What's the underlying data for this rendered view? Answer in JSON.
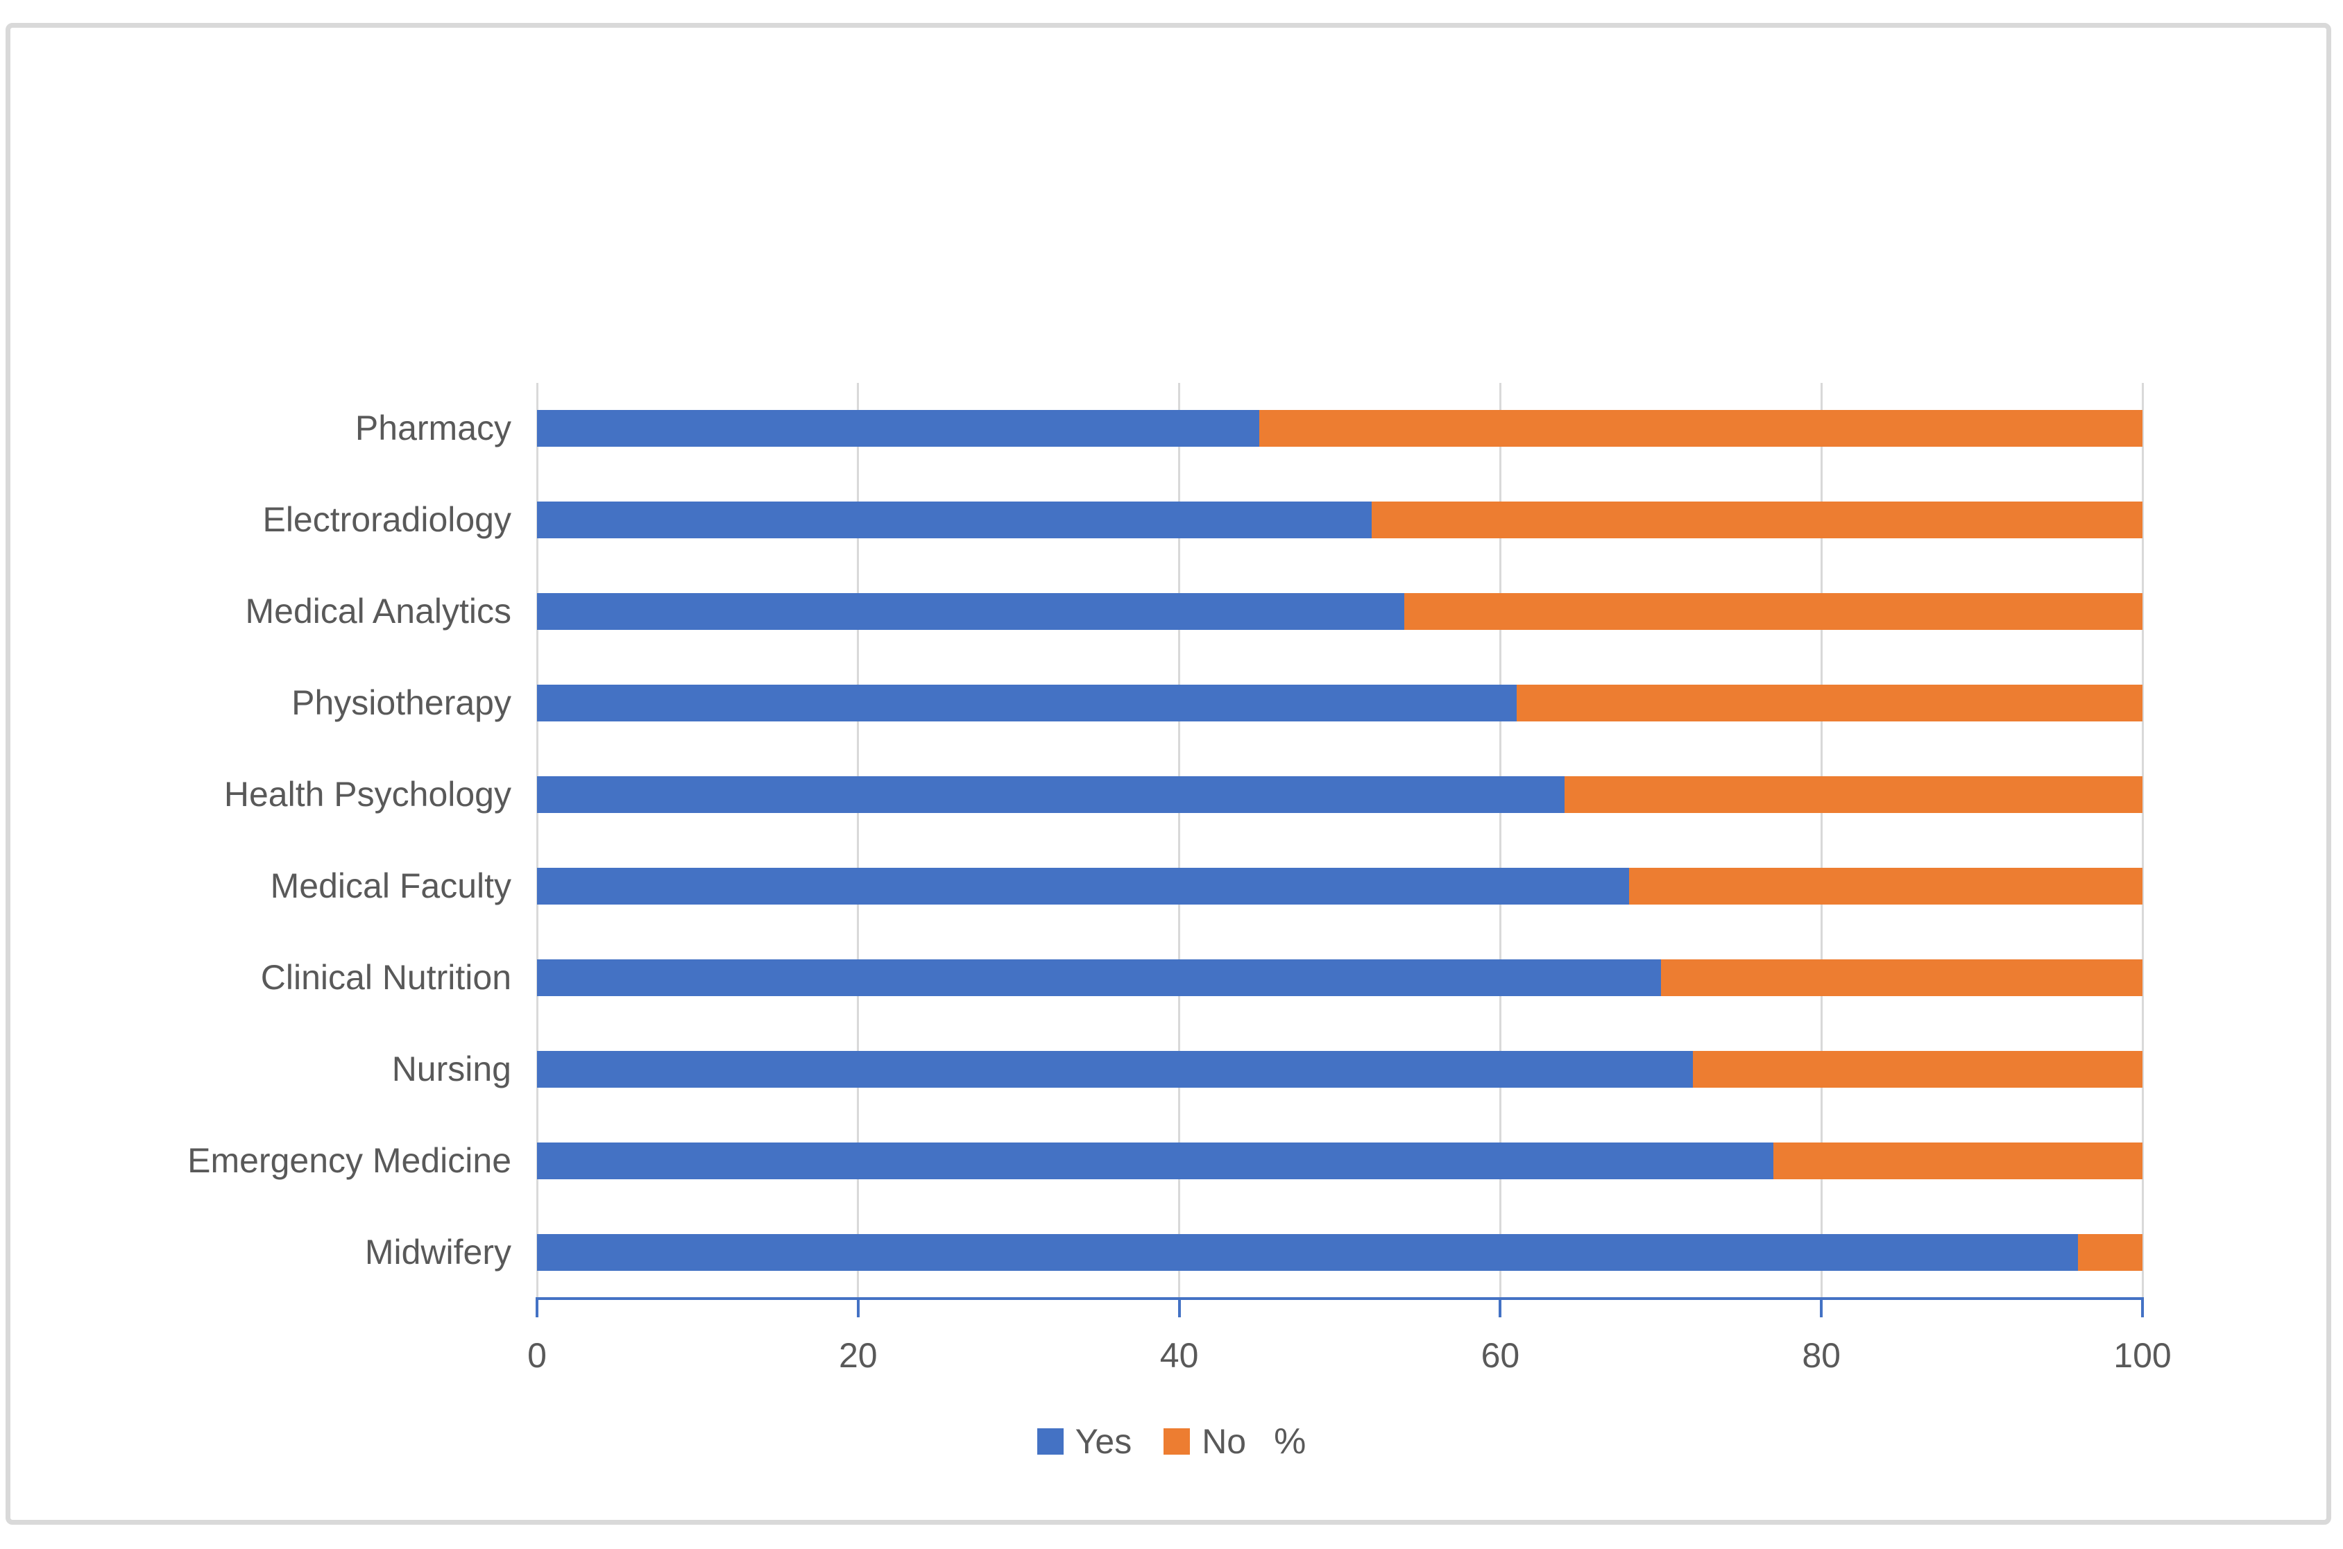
{
  "colors": {
    "yes": "#4472C4",
    "no": "#ED7D31",
    "gridline": "#D9D9D9",
    "axis_line": "#4472C4",
    "text": "#595959",
    "border": "#D9D9D9",
    "background": "#FFFFFF"
  },
  "legend": {
    "items": [
      "Yes",
      "No"
    ],
    "suffix": "%"
  },
  "chart_data": {
    "type": "bar",
    "orientation": "horizontal",
    "stacked": true,
    "title": "",
    "xlabel": "",
    "ylabel": "",
    "xlim": [
      0,
      100
    ],
    "x_ticks": [
      0,
      20,
      40,
      60,
      80,
      100
    ],
    "grid": "vertical",
    "legend_position": "bottom",
    "legend_suffix": "%",
    "categories": [
      "Pharmacy",
      "Electroradiology",
      "Medical Analytics",
      "Physiotherapy",
      "Health Psychology",
      "Medical Faculty",
      "Clinical Nutrition",
      "Nursing",
      "Emergency Medicine",
      "Midwifery"
    ],
    "series": [
      {
        "name": "Yes",
        "color": "#4472C4",
        "values": [
          45,
          52,
          54,
          61,
          64,
          68,
          70,
          72,
          77,
          96
        ]
      },
      {
        "name": "No",
        "color": "#ED7D31",
        "values": [
          55,
          48,
          46,
          39,
          36,
          32,
          30,
          28,
          23,
          4
        ]
      }
    ]
  }
}
